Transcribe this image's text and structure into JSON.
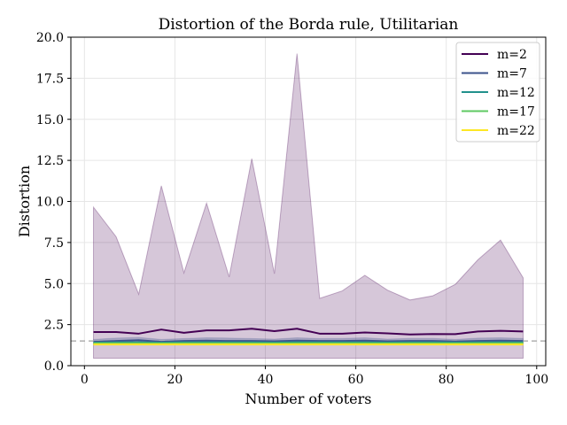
{
  "chart_data": {
    "type": "line",
    "title": "Distortion of the Borda rule, Utilitarian",
    "xlabel": "Number of voters",
    "ylabel": "Distortion",
    "xlim": [
      -3,
      102
    ],
    "ylim": [
      0,
      20
    ],
    "xticks": [
      0,
      20,
      40,
      60,
      80,
      100
    ],
    "yticks": [
      0.0,
      2.5,
      5.0,
      7.5,
      10.0,
      12.5,
      15.0,
      17.5,
      20.0
    ],
    "xtick_labels": [
      "0",
      "20",
      "40",
      "60",
      "80",
      "100"
    ],
    "ytick_labels": [
      "0.0",
      "2.5",
      "5.0",
      "7.5",
      "10.0",
      "12.5",
      "15.0",
      "17.5",
      "20.0"
    ],
    "grid": true,
    "legend_position": "top-right",
    "reference_line": {
      "y": 1.5,
      "style": "dashed",
      "color": "#b0b0b0"
    },
    "x": [
      2,
      7,
      12,
      17,
      22,
      27,
      32,
      37,
      42,
      47,
      52,
      57,
      62,
      67,
      72,
      77,
      82,
      87,
      92,
      97
    ],
    "series": [
      {
        "name": "m=2",
        "color": "#440154",
        "values": [
          2.05,
          2.05,
          1.95,
          2.2,
          2.0,
          2.15,
          2.15,
          2.25,
          2.1,
          2.25,
          1.95,
          1.95,
          2.02,
          1.97,
          1.9,
          1.93,
          1.92,
          2.08,
          2.12,
          2.08
        ],
        "band_upper": [
          9.65,
          7.85,
          4.35,
          10.95,
          5.65,
          9.9,
          5.4,
          12.6,
          5.6,
          19.0,
          4.1,
          4.55,
          5.5,
          4.6,
          4.0,
          4.25,
          4.95,
          6.45,
          7.65,
          5.35
        ],
        "band_lower": [
          0.45,
          0.45,
          0.45,
          0.45,
          0.45,
          0.45,
          0.45,
          0.45,
          0.45,
          0.45,
          0.45,
          0.45,
          0.45,
          0.45,
          0.45,
          0.45,
          0.45,
          0.45,
          0.45,
          0.45
        ]
      },
      {
        "name": "m=7",
        "color": "#3b528b",
        "values": [
          1.45,
          1.5,
          1.55,
          1.45,
          1.5,
          1.52,
          1.5,
          1.5,
          1.48,
          1.52,
          1.5,
          1.5,
          1.52,
          1.48,
          1.5,
          1.5,
          1.47,
          1.5,
          1.52,
          1.5
        ],
        "band_upper": [
          1.6,
          1.68,
          1.72,
          1.6,
          1.65,
          1.7,
          1.68,
          1.65,
          1.62,
          1.7,
          1.65,
          1.66,
          1.7,
          1.62,
          1.66,
          1.66,
          1.6,
          1.68,
          1.7,
          1.66
        ],
        "band_lower": [
          1.3,
          1.32,
          1.35,
          1.3,
          1.33,
          1.34,
          1.32,
          1.33,
          1.32,
          1.34,
          1.33,
          1.33,
          1.34,
          1.32,
          1.33,
          1.33,
          1.31,
          1.33,
          1.34,
          1.33
        ]
      },
      {
        "name": "m=12",
        "color": "#21918c",
        "values": [
          1.4,
          1.42,
          1.42,
          1.4,
          1.42,
          1.43,
          1.42,
          1.42,
          1.41,
          1.43,
          1.42,
          1.42,
          1.42,
          1.41,
          1.42,
          1.42,
          1.41,
          1.42,
          1.43,
          1.42
        ],
        "band_upper": [
          1.5,
          1.52,
          1.52,
          1.5,
          1.52,
          1.53,
          1.52,
          1.52,
          1.51,
          1.53,
          1.52,
          1.52,
          1.52,
          1.51,
          1.52,
          1.52,
          1.51,
          1.52,
          1.53,
          1.52
        ],
        "band_lower": [
          1.3,
          1.32,
          1.32,
          1.3,
          1.32,
          1.33,
          1.32,
          1.32,
          1.31,
          1.33,
          1.32,
          1.32,
          1.32,
          1.31,
          1.32,
          1.32,
          1.31,
          1.32,
          1.33,
          1.32
        ]
      },
      {
        "name": "m=17",
        "color": "#5ec962",
        "values": [
          1.36,
          1.37,
          1.37,
          1.36,
          1.37,
          1.37,
          1.37,
          1.37,
          1.36,
          1.37,
          1.37,
          1.37,
          1.37,
          1.36,
          1.37,
          1.37,
          1.36,
          1.37,
          1.37,
          1.37
        ],
        "band_upper": [
          1.43,
          1.44,
          1.44,
          1.43,
          1.44,
          1.44,
          1.44,
          1.44,
          1.43,
          1.44,
          1.44,
          1.44,
          1.44,
          1.43,
          1.44,
          1.44,
          1.43,
          1.44,
          1.44,
          1.44
        ],
        "band_lower": [
          1.29,
          1.3,
          1.3,
          1.29,
          1.3,
          1.3,
          1.3,
          1.3,
          1.29,
          1.3,
          1.3,
          1.3,
          1.3,
          1.29,
          1.3,
          1.3,
          1.29,
          1.3,
          1.3,
          1.3
        ]
      },
      {
        "name": "m=22",
        "color": "#fde725",
        "values": [
          1.3,
          1.3,
          1.3,
          1.3,
          1.3,
          1.3,
          1.3,
          1.3,
          1.3,
          1.3,
          1.3,
          1.3,
          1.3,
          1.3,
          1.3,
          1.3,
          1.3,
          1.3,
          1.3,
          1.3
        ],
        "band_upper": [
          1.36,
          1.36,
          1.36,
          1.36,
          1.36,
          1.36,
          1.36,
          1.36,
          1.36,
          1.36,
          1.36,
          1.36,
          1.36,
          1.36,
          1.36,
          1.36,
          1.36,
          1.36,
          1.36,
          1.36
        ],
        "band_lower": [
          1.24,
          1.24,
          1.24,
          1.24,
          1.24,
          1.24,
          1.24,
          1.24,
          1.24,
          1.24,
          1.24,
          1.24,
          1.24,
          1.24,
          1.24,
          1.24,
          1.24,
          1.24,
          1.24,
          1.24
        ]
      }
    ]
  }
}
